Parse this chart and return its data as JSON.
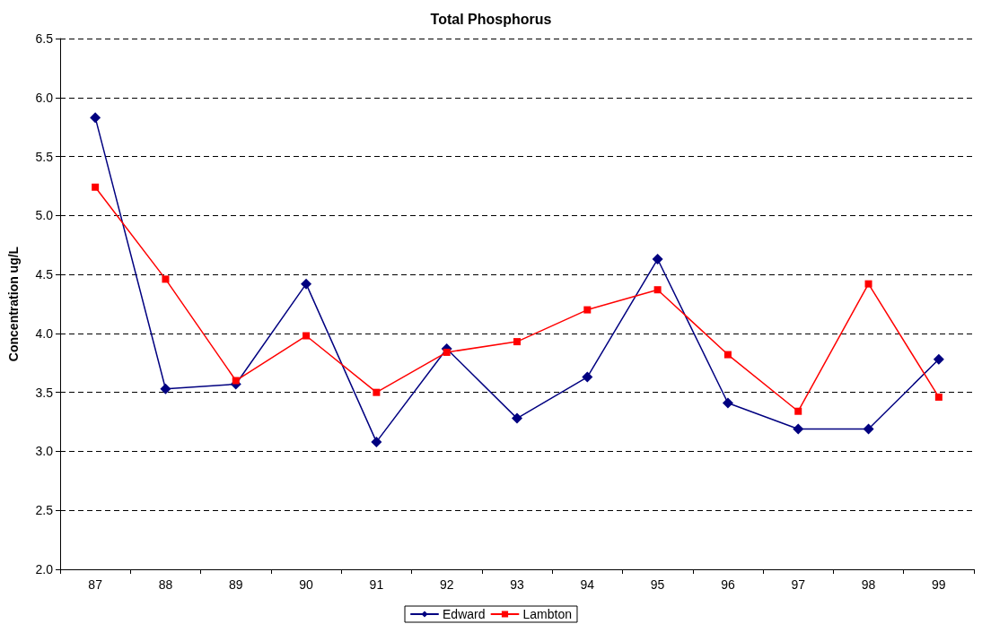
{
  "chart_data": {
    "type": "line",
    "title": "Total Phosphorus",
    "ylabel": "Concentration ug/L",
    "categories": [
      "87",
      "88",
      "89",
      "90",
      "91",
      "92",
      "93",
      "94",
      "95",
      "96",
      "97",
      "98",
      "99"
    ],
    "series": [
      {
        "name": "Edward",
        "color": "#000080",
        "marker": "diamond",
        "values": [
          5.83,
          3.53,
          3.57,
          4.42,
          3.08,
          3.87,
          3.28,
          3.63,
          4.63,
          3.41,
          3.19,
          3.19,
          3.78
        ]
      },
      {
        "name": "Lambton",
        "color": "#ff0000",
        "marker": "square",
        "values": [
          5.24,
          4.46,
          3.6,
          3.98,
          3.5,
          3.84,
          3.93,
          4.2,
          4.37,
          3.82,
          3.34,
          4.42,
          3.46
        ]
      }
    ],
    "ylim": [
      2.0,
      6.5
    ],
    "yticks": [
      {
        "value": 2,
        "label": "2.0"
      },
      2.5,
      {
        "value": 3,
        "label": "3.0"
      },
      3.5,
      {
        "value": 4,
        "label": "4.0"
      },
      4.5,
      {
        "value": 5,
        "label": "5.0"
      },
      5.5,
      {
        "value": 6,
        "label": "6.0"
      },
      6.5
    ],
    "grid": "y",
    "legend": "bottom",
    "line_style": "solid"
  }
}
